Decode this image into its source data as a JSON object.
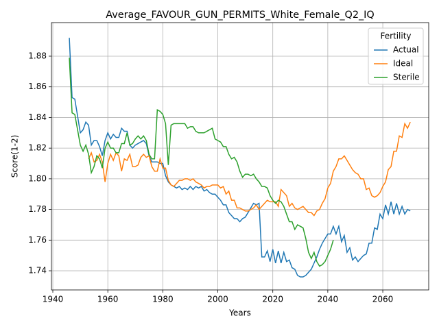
{
  "chart_data": {
    "type": "line",
    "title": "Average_FAVOUR_GUN_PERMITS_White_Female_Q2_IQ",
    "xlabel": "Years",
    "ylabel": "Score(1-2)",
    "legend_title": "Fertility",
    "legend_loc": "upper right",
    "grid": true,
    "x": [
      1946,
      1947,
      1948,
      1949,
      1950,
      1951,
      1952,
      1953,
      1954,
      1955,
      1956,
      1957,
      1958,
      1959,
      1960,
      1961,
      1962,
      1963,
      1964,
      1965,
      1966,
      1967,
      1968,
      1969,
      1970,
      1971,
      1972,
      1973,
      1974,
      1975,
      1976,
      1977,
      1978,
      1979,
      1980,
      1981,
      1982,
      1983,
      1984,
      1985,
      1986,
      1987,
      1988,
      1989,
      1990,
      1991,
      1992,
      1993,
      1994,
      1995,
      1996,
      1997,
      1998,
      1999,
      2000,
      2001,
      2002,
      2003,
      2004,
      2005,
      2006,
      2007,
      2008,
      2009,
      2010,
      2011,
      2012,
      2013,
      2014,
      2015,
      2016,
      2017,
      2018,
      2019,
      2020,
      2021,
      2022,
      2023,
      2024,
      2025,
      2026,
      2027,
      2028,
      2029,
      2030,
      2031,
      2032,
      2033,
      2034,
      2035,
      2036,
      2037,
      2038,
      2039,
      2040,
      2041,
      2042,
      2043,
      2044,
      2045,
      2046,
      2047,
      2048,
      2049,
      2050,
      2051,
      2052,
      2053,
      2054,
      2055,
      2056,
      2057,
      2058,
      2059,
      2060,
      2061,
      2062,
      2063,
      2064,
      2065,
      2066,
      2067,
      2068,
      2069,
      2070
    ],
    "series": [
      {
        "name": "Actual",
        "color": "#1f77b4",
        "values": [
          1.892,
          1.853,
          1.852,
          1.841,
          1.83,
          1.832,
          1.837,
          1.835,
          1.822,
          1.825,
          1.825,
          1.821,
          1.815,
          1.825,
          1.83,
          1.826,
          1.829,
          1.827,
          1.827,
          1.833,
          1.831,
          1.831,
          1.822,
          1.82,
          1.822,
          1.823,
          1.824,
          1.825,
          1.823,
          1.815,
          1.811,
          1.811,
          1.811,
          1.81,
          1.81,
          1.802,
          1.798,
          1.796,
          1.795,
          1.794,
          1.795,
          1.793,
          1.794,
          1.793,
          1.795,
          1.793,
          1.795,
          1.794,
          1.795,
          1.792,
          1.793,
          1.791,
          1.79,
          1.79,
          1.788,
          1.786,
          1.783,
          1.783,
          1.778,
          1.776,
          1.774,
          1.774,
          1.772,
          1.774,
          1.775,
          1.778,
          1.781,
          1.784,
          1.783,
          1.784,
          1.749,
          1.749,
          1.753,
          1.746,
          1.754,
          1.745,
          1.753,
          1.745,
          1.752,
          1.746,
          1.747,
          1.742,
          1.741,
          1.737,
          1.736,
          1.736,
          1.737,
          1.739,
          1.741,
          1.745,
          1.749,
          1.754,
          1.758,
          1.761,
          1.764,
          1.764,
          1.769,
          1.764,
          1.769,
          1.759,
          1.763,
          1.752,
          1.755,
          1.747,
          1.749,
          1.746,
          1.748,
          1.75,
          1.751,
          1.758,
          1.758,
          1.768,
          1.767,
          1.777,
          1.774,
          1.783,
          1.777,
          1.785,
          1.777,
          1.784,
          1.777,
          1.782,
          1.777,
          1.78,
          1.779
        ]
      },
      {
        "name": "Ideal",
        "color": "#ff7f0e",
        "values": [
          null,
          null,
          null,
          null,
          null,
          null,
          null,
          1.813,
          1.817,
          1.811,
          1.812,
          1.816,
          1.811,
          1.798,
          1.81,
          1.816,
          1.812,
          1.817,
          1.815,
          1.805,
          1.813,
          1.812,
          1.816,
          1.808,
          1.808,
          1.809,
          1.814,
          1.816,
          1.814,
          1.815,
          1.808,
          1.805,
          1.805,
          1.813,
          1.807,
          1.807,
          1.799,
          1.796,
          1.795,
          1.797,
          1.799,
          1.799,
          1.8,
          1.8,
          1.799,
          1.8,
          1.798,
          1.797,
          1.796,
          1.794,
          1.795,
          1.795,
          1.796,
          1.796,
          1.796,
          1.794,
          1.795,
          1.79,
          1.792,
          1.786,
          1.786,
          1.781,
          1.781,
          1.78,
          1.779,
          1.779,
          1.78,
          1.781,
          1.783,
          1.78,
          1.782,
          1.784,
          1.786,
          1.785,
          1.785,
          1.785,
          1.782,
          1.793,
          1.791,
          1.789,
          1.782,
          1.784,
          1.781,
          1.78,
          1.781,
          1.782,
          1.78,
          1.778,
          1.778,
          1.776,
          1.779,
          1.78,
          1.784,
          1.787,
          1.794,
          1.797,
          1.805,
          1.808,
          1.813,
          1.813,
          1.815,
          1.812,
          1.809,
          1.806,
          1.804,
          1.803,
          1.8,
          1.8,
          1.793,
          1.794,
          1.789,
          1.788,
          1.789,
          1.791,
          1.795,
          1.798,
          1.806,
          1.808,
          1.818,
          1.818,
          1.828,
          1.827,
          1.836,
          1.833,
          1.837
        ]
      },
      {
        "name": "Sterile",
        "color": "#2ca02c",
        "values": [
          1.879,
          1.843,
          1.842,
          1.832,
          1.822,
          1.818,
          1.822,
          1.816,
          1.804,
          1.808,
          1.815,
          1.813,
          1.807,
          1.82,
          1.824,
          1.82,
          1.82,
          1.817,
          1.817,
          1.823,
          1.823,
          1.83,
          1.822,
          1.823,
          1.826,
          1.828,
          1.826,
          1.828,
          1.825,
          1.816,
          1.813,
          1.813,
          1.845,
          1.844,
          1.842,
          1.836,
          1.809,
          1.835,
          1.836,
          1.836,
          1.836,
          1.836,
          1.836,
          1.833,
          1.834,
          1.834,
          1.831,
          1.83,
          1.83,
          1.83,
          1.831,
          1.832,
          1.833,
          1.826,
          1.825,
          1.824,
          1.821,
          1.821,
          1.816,
          1.813,
          1.814,
          1.811,
          1.805,
          1.801,
          1.803,
          1.803,
          1.802,
          1.803,
          1.8,
          1.798,
          1.795,
          1.795,
          1.794,
          1.789,
          1.786,
          1.784,
          1.786,
          1.785,
          1.782,
          1.777,
          1.772,
          1.772,
          1.767,
          1.77,
          1.769,
          1.768,
          1.761,
          1.752,
          1.748,
          1.752,
          1.746,
          1.743,
          1.744,
          1.746,
          1.75,
          1.754,
          1.76,
          null,
          null,
          null,
          null,
          null,
          null,
          null,
          null,
          null,
          null,
          null,
          null,
          null,
          null,
          null,
          null,
          null,
          null,
          null,
          null,
          null,
          null,
          null,
          null,
          null,
          null,
          null,
          null
        ]
      }
    ],
    "xlim": [
      1939.5,
      2076.7
    ],
    "xticks": [
      1940,
      1960,
      1980,
      2000,
      2020,
      2040,
      2060
    ],
    "ylim": [
      1.7275,
      1.9019
    ],
    "yticks": [
      1.74,
      1.76,
      1.78,
      {
        "value": 1.8,
        "label": "1.80"
      },
      1.82,
      1.84,
      1.86,
      1.88
    ]
  }
}
